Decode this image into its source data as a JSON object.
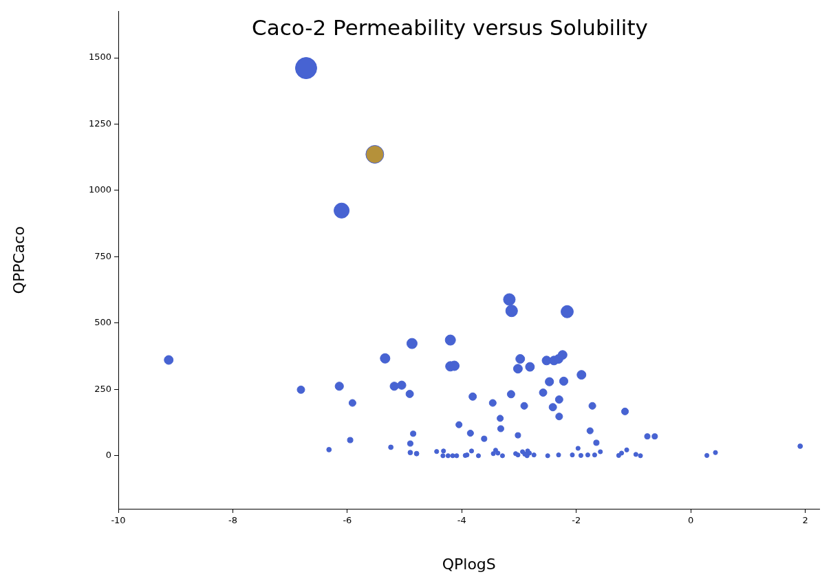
{
  "chart_data": {
    "type": "bubble",
    "title": "Caco-2 Permeability versus Solubility",
    "xlabel": "QPlogS",
    "ylabel": "QPPCaco",
    "x": [
      -6.72,
      -5.52,
      -6.1,
      -3.17,
      -3.13,
      -2.16,
      -4.2,
      -4.2,
      -4.13,
      -2.98,
      -3.02,
      -2.81,
      -2.52,
      -2.39,
      -2.31,
      -2.24,
      -2.47,
      -2.22,
      -1.91,
      -2.58,
      -2.3,
      -2.41,
      -2.3,
      -3.14,
      -3.81,
      -3.46,
      -2.91,
      -1.72,
      -1.15,
      -3.33,
      -3.32,
      -4.05,
      -3.85,
      -3.61,
      -3.02,
      -1.76,
      -1.65,
      -0.76,
      -0.63,
      -9.12,
      -4.87,
      -5.34,
      -6.81,
      -6.14,
      -5.91,
      -5.18,
      -5.05,
      -4.91,
      -4.85,
      -4.9,
      -5.95,
      -6.32,
      -5.24,
      -4.9,
      -4.79,
      -4.44,
      -4.32,
      -4.33,
      -4.24,
      -4.16,
      -4.09,
      -3.94,
      -3.91,
      -3.83,
      -3.71,
      -3.45,
      -3.41,
      -3.37,
      -3.29,
      -3.06,
      -3.02,
      -2.94,
      -2.9,
      -2.85,
      -2.82,
      -2.86,
      -2.74,
      -2.5,
      -2.31,
      -2.07,
      -1.97,
      -1.92,
      -1.8,
      -1.68,
      -1.58,
      -1.26,
      -1.21,
      -1.12,
      -0.96,
      -0.88,
      0.28,
      0.43,
      1.91
    ],
    "values": [
      1461,
      1136,
      924,
      589,
      546,
      543,
      436,
      337,
      339,
      365,
      328,
      335,
      359,
      359,
      365,
      380,
      279,
      281,
      305,
      238,
      212,
      183,
      148,
      232,
      223,
      199,
      188,
      188,
      167,
      141,
      102,
      117,
      85,
      64,
      77,
      94,
      49,
      73,
      73,
      361,
      423,
      367,
      249,
      262,
      199,
      262,
      266,
      233,
      83,
      46,
      59,
      23,
      32,
      12,
      8,
      16,
      18,
      0,
      0,
      0,
      0,
      1,
      3,
      18,
      0,
      8,
      21,
      10,
      0,
      8,
      3,
      15,
      6,
      18,
      10,
      0,
      3,
      0,
      3,
      3,
      28,
      1,
      3,
      3,
      15,
      1,
      10,
      22,
      5,
      0,
      1,
      12,
      36
    ],
    "sizes": [
      1,
      0.71,
      0.52,
      0.32,
      0.32,
      0.35,
      0.25,
      0.22,
      0.22,
      0.19,
      0.19,
      0.19,
      0.19,
      0.19,
      0.19,
      0.19,
      0.17,
      0.17,
      0.19,
      0.14,
      0.14,
      0.14,
      0.12,
      0.14,
      0.14,
      0.12,
      0.12,
      0.12,
      0.12,
      0.1,
      0.1,
      0.1,
      0.1,
      0.08,
      0.08,
      0.1,
      0.08,
      0.08,
      0.08,
      0.19,
      0.25,
      0.22,
      0.14,
      0.17,
      0.12,
      0.17,
      0.17,
      0.14,
      0.08,
      0.08,
      0.08,
      0.06,
      0.06,
      0.06,
      0.06,
      0.05,
      0.05,
      0.05,
      0.05,
      0.05,
      0.05,
      0.05,
      0.05,
      0.05,
      0.05,
      0.05,
      0.05,
      0.05,
      0.05,
      0.05,
      0.05,
      0.05,
      0.05,
      0.05,
      0.05,
      0.05,
      0.05,
      0.05,
      0.05,
      0.05,
      0.05,
      0.05,
      0.05,
      0.05,
      0.05,
      0.05,
      0.05,
      0.05,
      0.05,
      0.05,
      0.05,
      0.05,
      0.06
    ],
    "color": "#4763d2",
    "colors": [
      "#4763d2",
      "#b5913a",
      "#4763d2",
      "#4763d2",
      "#4763d2",
      "#4763d2",
      "#4763d2",
      "#4763d2",
      "#4763d2",
      "#4763d2",
      "#4763d2",
      "#4763d2",
      "#4763d2",
      "#4763d2",
      "#4763d2",
      "#4763d2",
      "#4763d2",
      "#4763d2",
      "#4763d2",
      "#4763d2",
      "#4763d2",
      "#4763d2",
      "#4763d2",
      "#4763d2",
      "#4763d2",
      "#4763d2",
      "#4763d2",
      "#4763d2",
      "#4763d2",
      "#4763d2",
      "#4763d2",
      "#4763d2",
      "#4763d2",
      "#4763d2",
      "#4763d2",
      "#4763d2",
      "#4763d2",
      "#4763d2",
      "#4763d2",
      "#4763d2",
      "#4763d2",
      "#4763d2",
      "#4763d2",
      "#4763d2",
      "#4763d2",
      "#4763d2",
      "#4763d2",
      "#4763d2",
      "#4763d2",
      "#4763d2",
      "#4763d2",
      "#4763d2",
      "#4763d2",
      "#4763d2",
      "#4763d2",
      "#4763d2",
      "#4763d2",
      "#4763d2",
      "#4763d2",
      "#4763d2",
      "#4763d2",
      "#4763d2",
      "#4763d2",
      "#4763d2",
      "#4763d2",
      "#4763d2",
      "#4763d2",
      "#4763d2",
      "#4763d2",
      "#4763d2",
      "#4763d2",
      "#4763d2",
      "#4763d2",
      "#4763d2",
      "#4763d2",
      "#4763d2",
      "#4763d2",
      "#4763d2",
      "#4763d2",
      "#4763d2",
      "#4763d2",
      "#4763d2",
      "#4763d2",
      "#4763d2",
      "#4763d2",
      "#4763d2",
      "#4763d2",
      "#4763d2",
      "#4763d2",
      "#4763d2",
      "#4763d2",
      "#4763d2",
      "#4763d2"
    ],
    "xlim": [
      -10,
      2.25
    ],
    "ylim": [
      -200,
      1675
    ],
    "xticks": [
      -10,
      -8,
      -6,
      -4,
      -2,
      0,
      2
    ],
    "yticks": [
      0,
      250,
      500,
      750,
      1000,
      1250,
      1500
    ],
    "grid": false,
    "legend": false,
    "marker": "circle"
  }
}
